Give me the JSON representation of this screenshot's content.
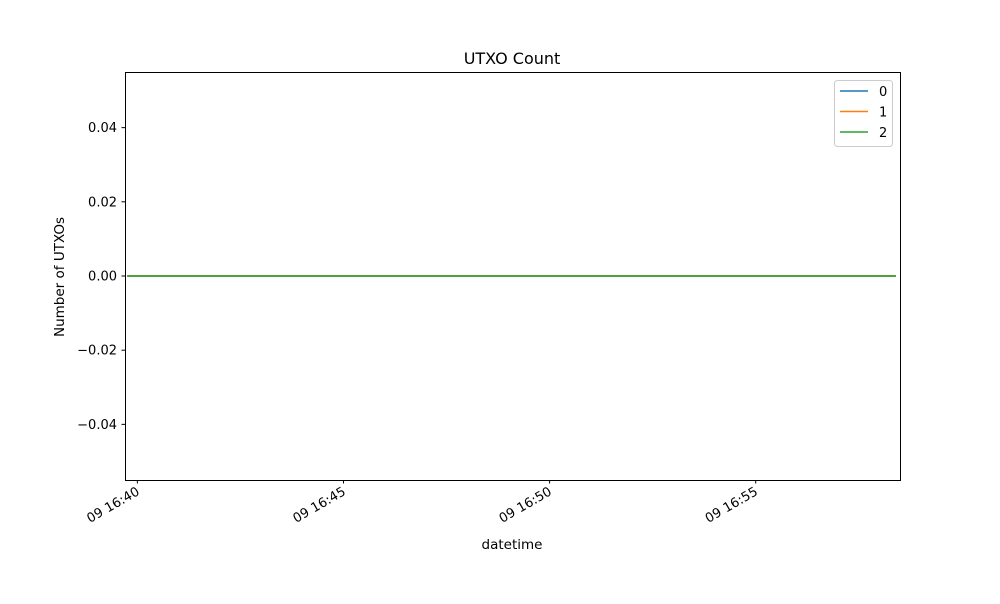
{
  "chart_data": {
    "type": "line",
    "title": "UTXO Count",
    "xlabel": "datetime",
    "ylabel": "Number of UTXOs",
    "x_range_minutes": [
      -0.3,
      18.5
    ],
    "x_data_extent_minutes": [
      -0.25,
      18.4
    ],
    "ylim": [
      -0.055,
      0.055
    ],
    "y_ticks": [
      {
        "value": -0.04,
        "label": "−0.04"
      },
      {
        "value": -0.02,
        "label": "−0.02"
      },
      {
        "value": 0.0,
        "label": "0.00"
      },
      {
        "value": 0.02,
        "label": "0.02"
      },
      {
        "value": 0.04,
        "label": "0.04"
      }
    ],
    "x_ticks": [
      {
        "value": 0,
        "label": "09 16:40"
      },
      {
        "value": 5,
        "label": "09 16:45"
      },
      {
        "value": 10,
        "label": "09 16:50"
      },
      {
        "value": 15,
        "label": "09 16:55"
      }
    ],
    "series": [
      {
        "name": "0",
        "color": "#1f77b4",
        "x": [
          -0.25,
          18.4
        ],
        "values": [
          0,
          0
        ]
      },
      {
        "name": "1",
        "color": "#ff7f0e",
        "x": [
          -0.25,
          18.4
        ],
        "values": [
          0,
          0
        ]
      },
      {
        "name": "2",
        "color": "#2ca02c",
        "x": [
          -0.25,
          18.4
        ],
        "values": [
          0,
          0
        ]
      }
    ],
    "legend_position": "top-right",
    "grid": false
  }
}
